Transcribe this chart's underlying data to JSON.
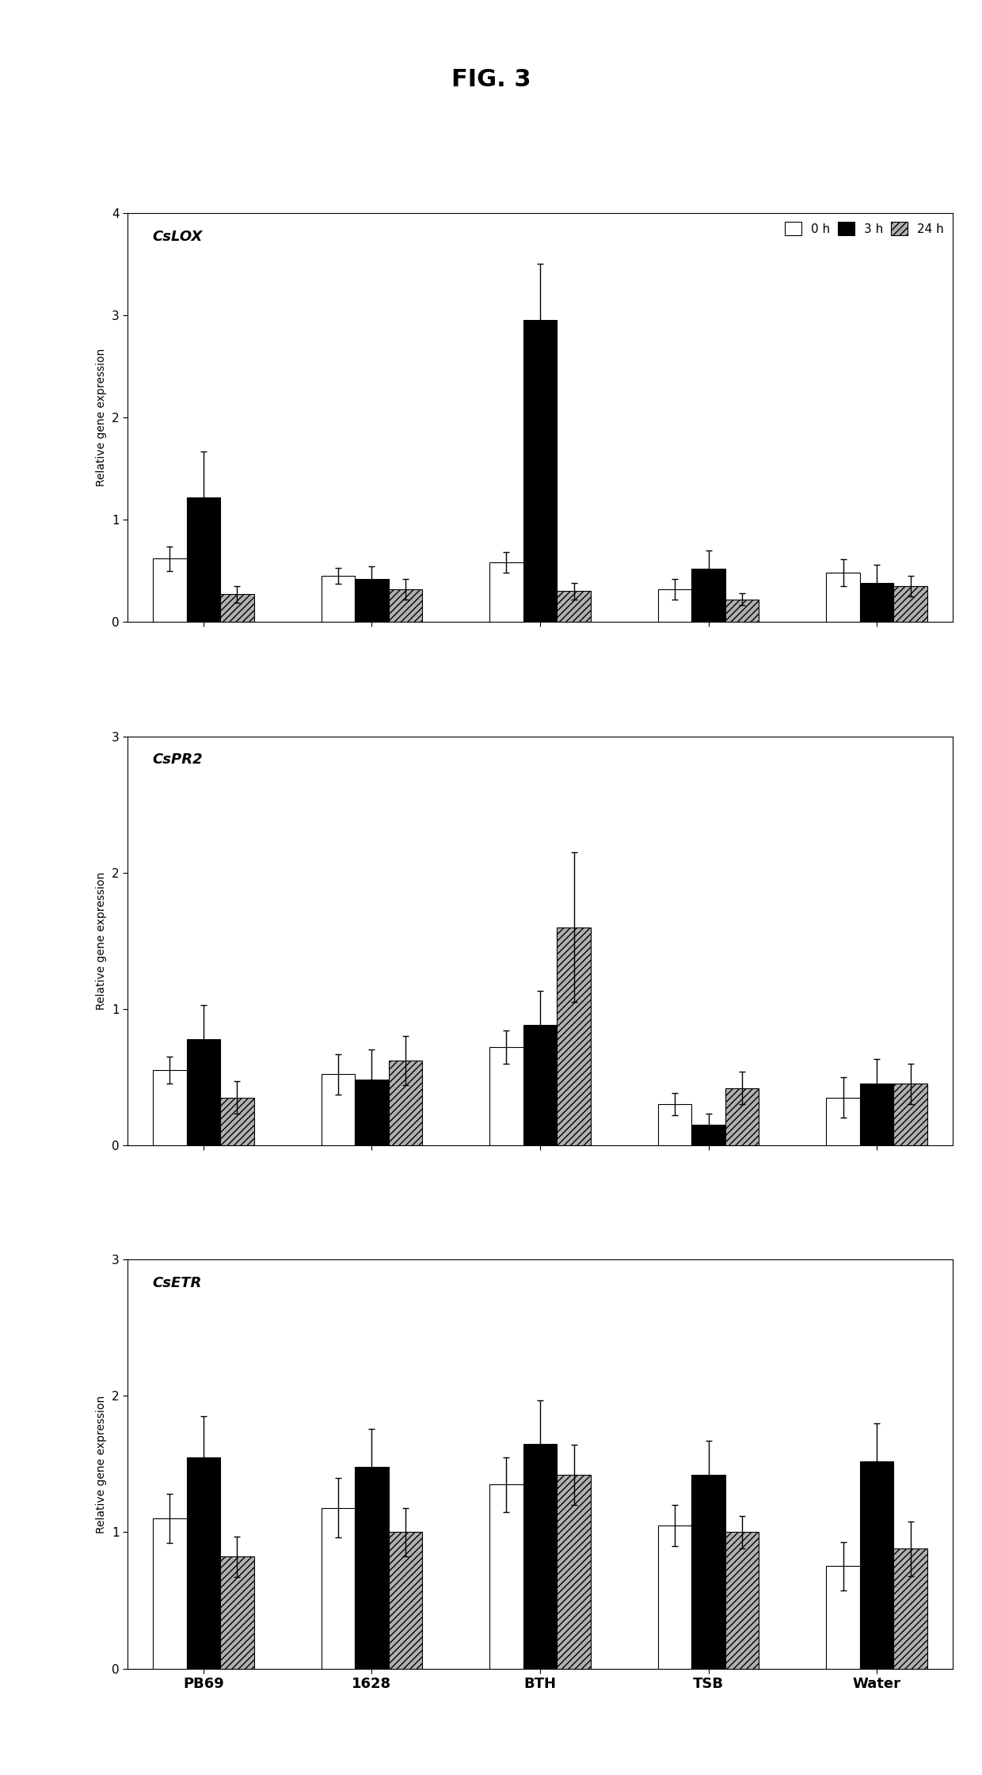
{
  "title": "FIG. 3",
  "categories": [
    "PB69",
    "1628",
    "BTH",
    "TSB",
    "Water"
  ],
  "time_labels": [
    "0 h",
    "3 h",
    "24 h"
  ],
  "panels": [
    {
      "gene": "CsLOX",
      "ylim": [
        0,
        4
      ],
      "yticks": [
        0,
        1,
        2,
        3,
        4
      ],
      "values": [
        [
          0.62,
          0.45,
          0.58,
          0.32,
          0.48
        ],
        [
          1.22,
          0.42,
          2.95,
          0.52,
          0.38
        ],
        [
          0.27,
          0.32,
          0.3,
          0.22,
          0.35
        ]
      ],
      "errors": [
        [
          0.12,
          0.08,
          0.1,
          0.1,
          0.13
        ],
        [
          0.45,
          0.12,
          0.55,
          0.18,
          0.18
        ],
        [
          0.08,
          0.1,
          0.08,
          0.06,
          0.1
        ]
      ]
    },
    {
      "gene": "CsPR2",
      "ylim": [
        0,
        3
      ],
      "yticks": [
        0,
        1,
        2,
        3
      ],
      "values": [
        [
          0.55,
          0.52,
          0.72,
          0.3,
          0.35
        ],
        [
          0.78,
          0.48,
          0.88,
          0.15,
          0.45
        ],
        [
          0.35,
          0.62,
          1.6,
          0.42,
          0.45
        ]
      ],
      "errors": [
        [
          0.1,
          0.15,
          0.12,
          0.08,
          0.15
        ],
        [
          0.25,
          0.22,
          0.25,
          0.08,
          0.18
        ],
        [
          0.12,
          0.18,
          0.55,
          0.12,
          0.15
        ]
      ]
    },
    {
      "gene": "CsETR",
      "ylim": [
        0,
        3
      ],
      "yticks": [
        0,
        1,
        2,
        3
      ],
      "values": [
        [
          1.1,
          1.18,
          1.35,
          1.05,
          0.75
        ],
        [
          1.55,
          1.48,
          1.65,
          1.42,
          1.52
        ],
        [
          0.82,
          1.0,
          1.42,
          1.0,
          0.88
        ]
      ],
      "errors": [
        [
          0.18,
          0.22,
          0.2,
          0.15,
          0.18
        ],
        [
          0.3,
          0.28,
          0.32,
          0.25,
          0.28
        ],
        [
          0.15,
          0.18,
          0.22,
          0.12,
          0.2
        ]
      ]
    }
  ],
  "bar_edgecolor": "black",
  "hatch_pattern": "////",
  "background_color": "white",
  "xlabel_fontsize": 13,
  "ylabel_fontsize": 10,
  "gene_label_fontsize": 13,
  "legend_fontsize": 11,
  "tick_fontsize": 11,
  "title_fontsize": 22
}
